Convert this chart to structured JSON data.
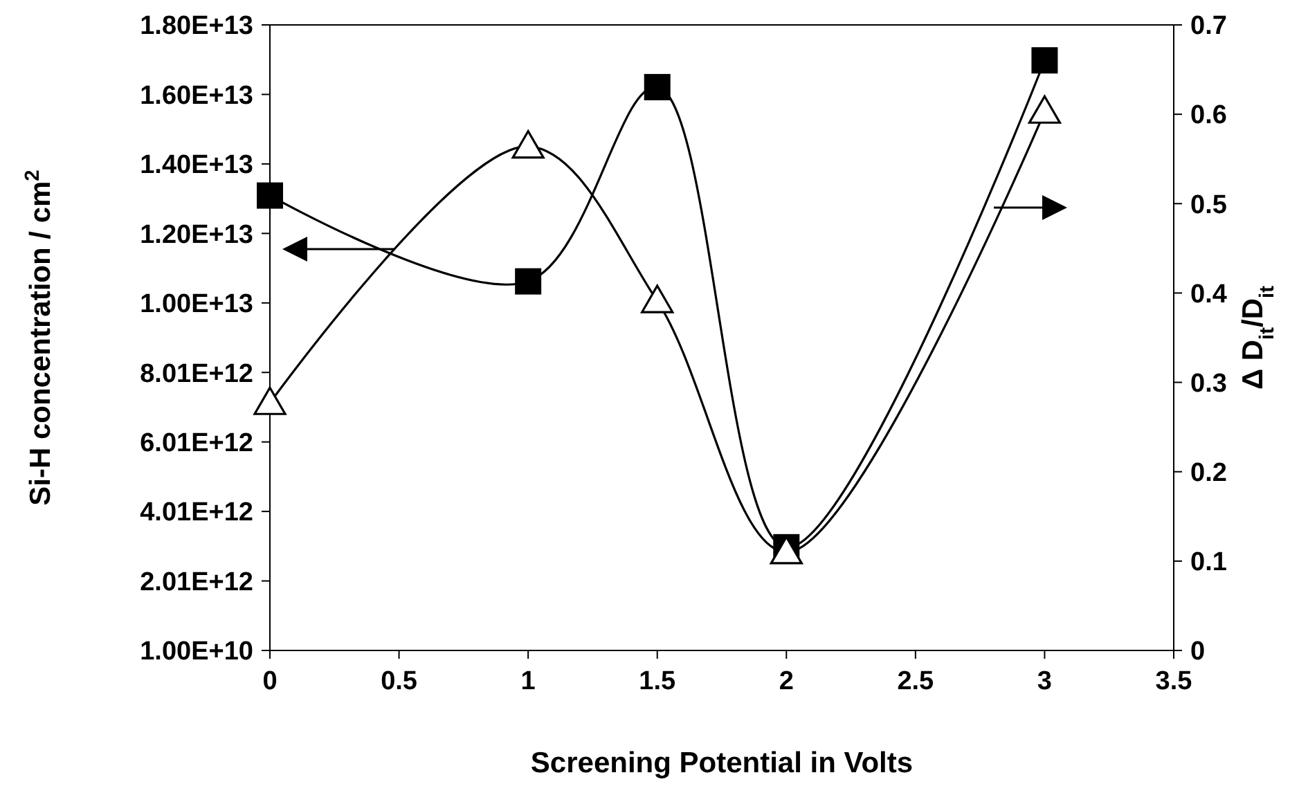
{
  "chart_data": {
    "type": "line",
    "xlabel": "Screening Potential in Volts",
    "ylabel": "Si-H concentration / cm$^{2}$",
    "y2label": "Δ D$_{it}$/D$_{it}$",
    "x": [
      0,
      1,
      1.5,
      2,
      3
    ],
    "series": [
      {
        "color": "#000000",
        "marker": "square",
        "values": [
          13100000000000,
          10630000000000,
          16220000000000,
          2980000000000,
          16990000000000
        ]
      },
      {
        "color": "#000000",
        "marker": "triangle",
        "axis": "y2",
        "values": [
          0.277,
          0.564,
          0.391,
          0.11,
          0.603
        ]
      }
    ],
    "xlim": [
      0,
      3.5
    ],
    "xticks": [
      0,
      0.5,
      1,
      1.5,
      2,
      2.5,
      3,
      3.5
    ],
    "ylim": [
      10000000000,
      18010000000000
    ],
    "yticks": [
      {
        "value": 10000000000,
        "label": "1.00E+10"
      },
      {
        "value": 2010000000000,
        "label": "2.01E+12"
      },
      {
        "value": 4010000000000,
        "label": "4.01E+12"
      },
      {
        "value": 6010000000000,
        "label": "6.01E+12"
      },
      {
        "value": 8010000000000,
        "label": "8.01E+12"
      },
      {
        "value": 10010000000000,
        "label": "1.00E+13"
      },
      {
        "value": 12010000000000,
        "label": "1.20E+13"
      },
      {
        "value": 14010000000000,
        "label": "1.40E+13"
      },
      {
        "value": 16010000000000,
        "label": "1.60E+13"
      },
      {
        "value": 18010000000000,
        "label": "1.80E+13"
      }
    ],
    "y2lim": [
      0,
      0.7
    ],
    "y2ticks": [
      0,
      0.1,
      0.2,
      0.3,
      0.4,
      0.5,
      0.6,
      0.7
    ],
    "grid": false
  }
}
